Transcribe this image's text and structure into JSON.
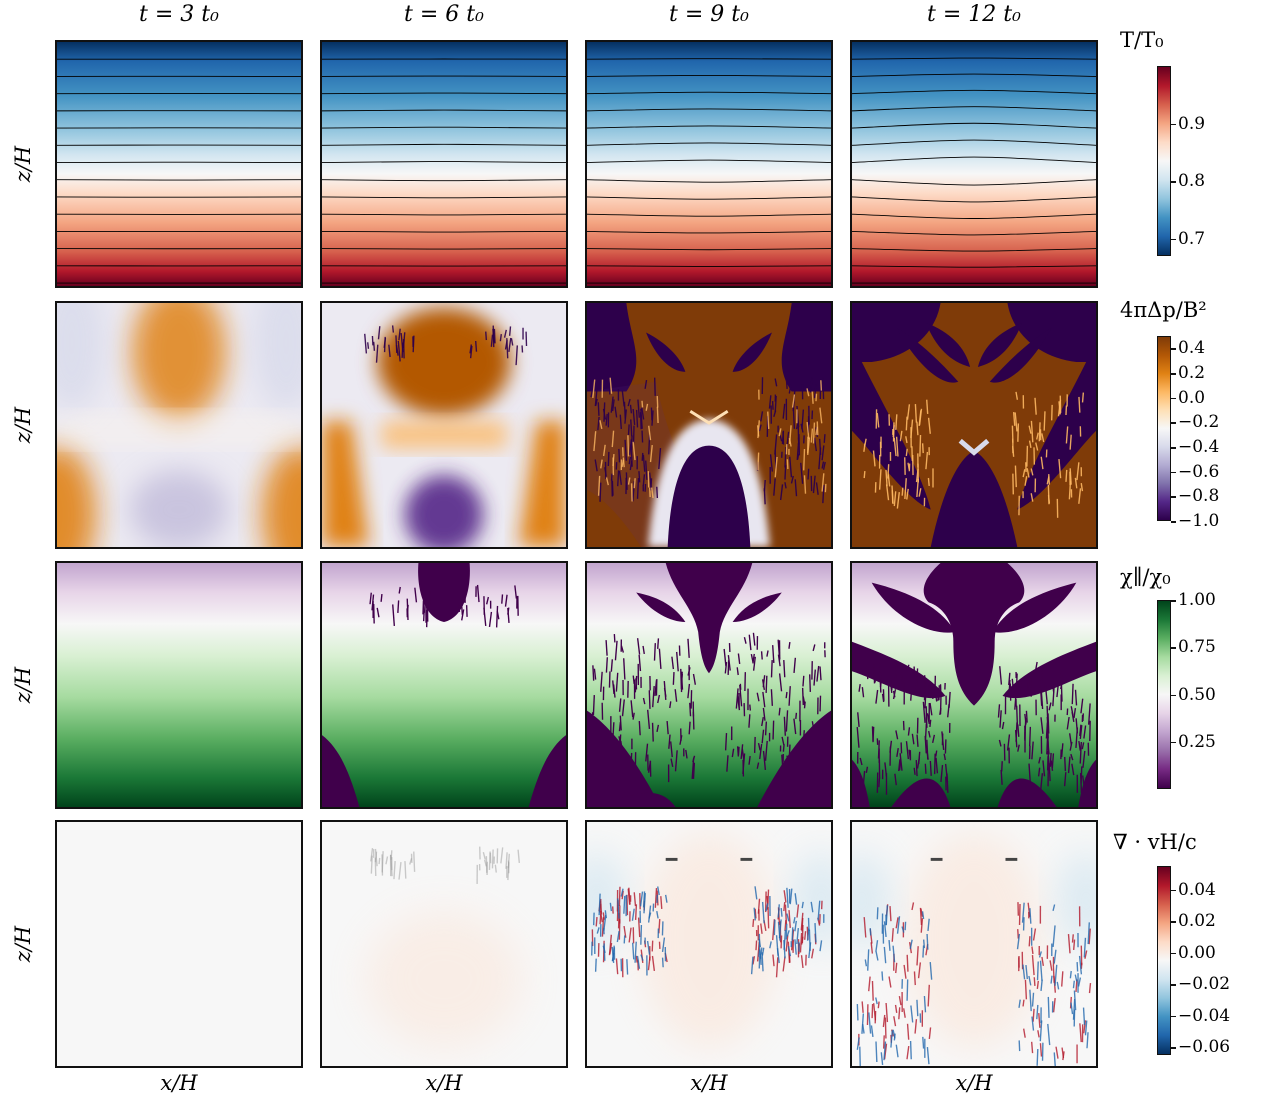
{
  "figure": {
    "columns": [
      {
        "label": "t = 3 t₀"
      },
      {
        "label": "t = 6 t₀"
      },
      {
        "label": "t = 9 t₀"
      },
      {
        "label": "t = 12 t₀"
      }
    ],
    "xlabel": "x/H",
    "ylabel": "z/H"
  },
  "chart_data": [
    {
      "type": "heatmap",
      "row": "temperature",
      "colorbar_label": "T/T₀",
      "colormap": "RdBu_r",
      "ticks": [
        "0.7",
        "0.8",
        "0.9"
      ],
      "range": [
        0.67,
        1.0
      ],
      "contours": true,
      "panels": [
        "t = 3 t₀",
        "t = 6 t₀",
        "t = 9 t₀",
        "t = 12 t₀"
      ]
    },
    {
      "type": "heatmap",
      "row": "pressure-anisotropy",
      "colorbar_label": "4πΔp/B²",
      "colormap": "PuOr_r",
      "ticks": [
        "0.4",
        "0.2",
        "0.0",
        "−0.2",
        "−0.4",
        "−0.6",
        "−0.8",
        "−1.0"
      ],
      "range": [
        -1.0,
        0.5
      ],
      "panels": [
        "t = 3 t₀",
        "t = 6 t₀",
        "t = 9 t₀",
        "t = 12 t₀"
      ]
    },
    {
      "type": "heatmap",
      "row": "conductivity",
      "colorbar_label": "χ∥/χ₀",
      "colormap": "PRGn",
      "ticks": [
        "1.00",
        "0.75",
        "0.50",
        "0.25"
      ],
      "range": [
        0.0,
        1.0
      ],
      "panels": [
        "t = 3 t₀",
        "t = 6 t₀",
        "t = 9 t₀",
        "t = 12 t₀"
      ]
    },
    {
      "type": "heatmap",
      "row": "divergence",
      "colorbar_label": "∇ · vH/c",
      "colormap": "RdBu_r",
      "ticks": [
        "0.04",
        "0.02",
        "0.00",
        "−0.02",
        "−0.04",
        "−0.06"
      ],
      "range": [
        -0.065,
        0.055
      ],
      "panels": [
        "t = 3 t₀",
        "t = 6 t₀",
        "t = 9 t₀",
        "t = 12 t₀"
      ]
    }
  ],
  "colors": {
    "temp_scale": [
      "#053061",
      "#2166ac",
      "#4393c3",
      "#92c5de",
      "#d1e5f0",
      "#f7f7f7",
      "#fddbc7",
      "#f4a582",
      "#d6604d",
      "#b2182b",
      "#67001f"
    ],
    "aniso_scale": [
      "#2d004b",
      "#542788",
      "#8073ac",
      "#b2abd2",
      "#d8daeb",
      "#f7f7f7",
      "#fee0b6",
      "#fdb863",
      "#e08214",
      "#b35806",
      "#7f3b08"
    ],
    "chi_scale": [
      "#40004b",
      "#762a83",
      "#9970ab",
      "#c2a5cf",
      "#e7d4e8",
      "#f7f7f7",
      "#d9f0d3",
      "#a6dba0",
      "#5aae61",
      "#1b7837",
      "#00441b"
    ],
    "div_scale": [
      "#053061",
      "#2166ac",
      "#4393c3",
      "#92c5de",
      "#d1e5f0",
      "#f7f7f7",
      "#fddbc7",
      "#f4a582",
      "#d6604d",
      "#b2182b",
      "#67001f"
    ],
    "aniso_dark": "#2d004b",
    "aniso_brown": "#7f3b08",
    "chi_dark": "#40004b",
    "contour": "#000000"
  }
}
